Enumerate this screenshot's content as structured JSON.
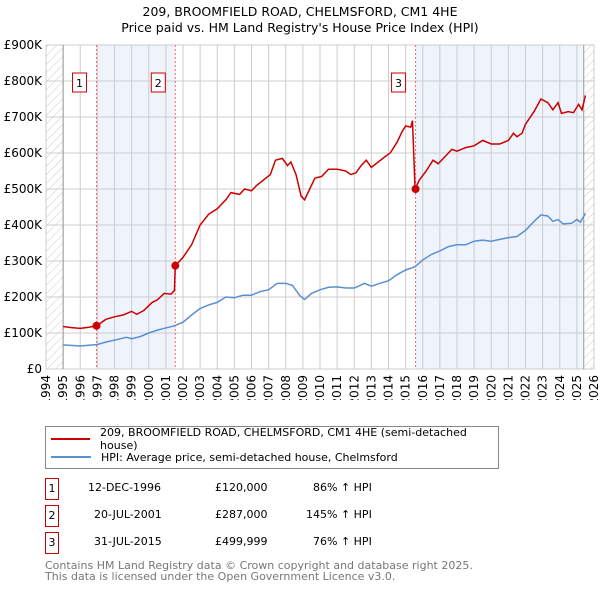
{
  "title": "209, BROOMFIELD ROAD, CHELMSFORD, CM1 4HE",
  "subtitle": "Price paid vs. HM Land Registry's House Price Index (HPI)",
  "chart_data": {
    "type": "line",
    "xlim": [
      1994,
      2026
    ],
    "ylim": [
      0,
      900000
    ],
    "x_ticks": [
      "1994",
      "1995",
      "1996",
      "1997",
      "1998",
      "1999",
      "2000",
      "2001",
      "2002",
      "2003",
      "2004",
      "2005",
      "2006",
      "2007",
      "2008",
      "2009",
      "2010",
      "2011",
      "2012",
      "2013",
      "2014",
      "2015",
      "2016",
      "2017",
      "2018",
      "2019",
      "2020",
      "2021",
      "2022",
      "2023",
      "2024",
      "2025",
      "2026"
    ],
    "y_ticks": [
      {
        "v": 0,
        "label": "£0"
      },
      {
        "v": 100000,
        "label": "£100K"
      },
      {
        "v": 200000,
        "label": "£200K"
      },
      {
        "v": 300000,
        "label": "£300K"
      },
      {
        "v": 400000,
        "label": "£400K"
      },
      {
        "v": 500000,
        "label": "£500K"
      },
      {
        "v": 600000,
        "label": "£600K"
      },
      {
        "v": 700000,
        "label": "£700K"
      },
      {
        "v": 800000,
        "label": "£800K"
      },
      {
        "v": 900000,
        "label": "£900K"
      }
    ],
    "series": [
      {
        "name": "209, BROOMFIELD ROAD, CHELMSFORD, CM1 4HE (semi-detached house)",
        "color": "#cc0000",
        "points": [
          [
            1995,
            118
          ],
          [
            1995.5,
            115
          ],
          [
            1996,
            113
          ],
          [
            1996.5,
            116
          ],
          [
            1996.95,
            120
          ],
          [
            1997.5,
            138
          ],
          [
            1998,
            145
          ],
          [
            1998.5,
            150
          ],
          [
            1999,
            160
          ],
          [
            1999.3,
            152
          ],
          [
            1999.7,
            162
          ],
          [
            2000.2,
            185
          ],
          [
            2000.5,
            192
          ],
          [
            2000.9,
            210
          ],
          [
            2001.3,
            208
          ],
          [
            2001.5,
            218
          ],
          [
            2001.55,
            287
          ],
          [
            2002,
            310
          ],
          [
            2002.5,
            345
          ],
          [
            2003,
            400
          ],
          [
            2003.5,
            430
          ],
          [
            2004,
            445
          ],
          [
            2004.5,
            470
          ],
          [
            2004.8,
            490
          ],
          [
            2005.3,
            485
          ],
          [
            2005.6,
            500
          ],
          [
            2006,
            495
          ],
          [
            2006.3,
            510
          ],
          [
            2006.7,
            525
          ],
          [
            2007.1,
            540
          ],
          [
            2007.4,
            580
          ],
          [
            2007.8,
            585
          ],
          [
            2008.1,
            565
          ],
          [
            2008.3,
            575
          ],
          [
            2008.6,
            540
          ],
          [
            2008.9,
            480
          ],
          [
            2009.1,
            470
          ],
          [
            2009.4,
            500
          ],
          [
            2009.7,
            530
          ],
          [
            2010.1,
            535
          ],
          [
            2010.5,
            555
          ],
          [
            2011,
            555
          ],
          [
            2011.5,
            550
          ],
          [
            2011.8,
            540
          ],
          [
            2012.1,
            545
          ],
          [
            2012.4,
            565
          ],
          [
            2012.7,
            580
          ],
          [
            2013,
            560
          ],
          [
            2013.4,
            575
          ],
          [
            2013.8,
            590
          ],
          [
            2014.1,
            600
          ],
          [
            2014.5,
            630
          ],
          [
            2014.8,
            660
          ],
          [
            2015,
            675
          ],
          [
            2015.3,
            672
          ],
          [
            2015.4,
            690
          ],
          [
            2015.55,
            500
          ],
          [
            2015.8,
            525
          ],
          [
            2016.2,
            550
          ],
          [
            2016.6,
            580
          ],
          [
            2016.9,
            570
          ],
          [
            2017.3,
            590
          ],
          [
            2017.7,
            610
          ],
          [
            2018,
            605
          ],
          [
            2018.5,
            615
          ],
          [
            2019,
            620
          ],
          [
            2019.5,
            635
          ],
          [
            2020,
            625
          ],
          [
            2020.5,
            625
          ],
          [
            2021,
            635
          ],
          [
            2021.3,
            655
          ],
          [
            2021.5,
            645
          ],
          [
            2021.8,
            655
          ],
          [
            2022,
            680
          ],
          [
            2022.5,
            715
          ],
          [
            2022.9,
            750
          ],
          [
            2023.3,
            740
          ],
          [
            2023.6,
            720
          ],
          [
            2023.9,
            740
          ],
          [
            2024.1,
            710
          ],
          [
            2024.5,
            715
          ],
          [
            2024.8,
            712
          ],
          [
            2025.1,
            735
          ],
          [
            2025.3,
            720
          ],
          [
            2025.5,
            760
          ]
        ]
      },
      {
        "name": "HPI: Average price, semi-detached house, Chelmsford",
        "color": "#5b8fd4",
        "points": [
          [
            1995,
            67
          ],
          [
            1996,
            64
          ],
          [
            1997,
            68
          ],
          [
            1997.5,
            75
          ],
          [
            1998,
            80
          ],
          [
            1998.7,
            88
          ],
          [
            1999,
            84
          ],
          [
            1999.5,
            90
          ],
          [
            2000,
            100
          ],
          [
            2000.5,
            108
          ],
          [
            2001,
            114
          ],
          [
            2001.5,
            120
          ],
          [
            2002,
            130
          ],
          [
            2002.5,
            150
          ],
          [
            2003,
            168
          ],
          [
            2003.5,
            178
          ],
          [
            2004,
            185
          ],
          [
            2004.5,
            200
          ],
          [
            2005,
            198
          ],
          [
            2005.5,
            205
          ],
          [
            2006,
            205
          ],
          [
            2006.5,
            215
          ],
          [
            2007,
            220
          ],
          [
            2007.5,
            238
          ],
          [
            2008,
            238
          ],
          [
            2008.4,
            232
          ],
          [
            2008.8,
            205
          ],
          [
            2009.1,
            193
          ],
          [
            2009.5,
            210
          ],
          [
            2010,
            220
          ],
          [
            2010.5,
            227
          ],
          [
            2011,
            228
          ],
          [
            2011.5,
            225
          ],
          [
            2012,
            225
          ],
          [
            2012.6,
            238
          ],
          [
            2013,
            230
          ],
          [
            2013.5,
            238
          ],
          [
            2014,
            245
          ],
          [
            2014.5,
            262
          ],
          [
            2015,
            275
          ],
          [
            2015.55,
            284
          ],
          [
            2016,
            303
          ],
          [
            2016.5,
            318
          ],
          [
            2017,
            328
          ],
          [
            2017.5,
            340
          ],
          [
            2018,
            345
          ],
          [
            2018.5,
            345
          ],
          [
            2019,
            355
          ],
          [
            2019.5,
            358
          ],
          [
            2020,
            355
          ],
          [
            2020.5,
            360
          ],
          [
            2021,
            365
          ],
          [
            2021.5,
            368
          ],
          [
            2022,
            385
          ],
          [
            2022.5,
            410
          ],
          [
            2022.9,
            428
          ],
          [
            2023.3,
            425
          ],
          [
            2023.6,
            410
          ],
          [
            2023.9,
            415
          ],
          [
            2024.2,
            403
          ],
          [
            2024.7,
            405
          ],
          [
            2025,
            415
          ],
          [
            2025.2,
            408
          ],
          [
            2025.5,
            432
          ]
        ]
      }
    ],
    "y_unit": "thousands GBP",
    "sales": [
      {
        "label": "1",
        "x": 1996.95,
        "y": 120
      },
      {
        "label": "2",
        "x": 2001.55,
        "y": 287
      },
      {
        "label": "3",
        "x": 2015.58,
        "y": 500
      }
    ]
  },
  "legend": [
    "209, BROOMFIELD ROAD, CHELMSFORD, CM1 4HE (semi-detached house)",
    "HPI: Average price, semi-detached house, Chelmsford"
  ],
  "transactions": [
    {
      "num": "1",
      "date": "12-DEC-1996",
      "price": "£120,000",
      "hpi": "86% ↑ HPI"
    },
    {
      "num": "2",
      "date": "20-JUL-2001",
      "price": "£287,000",
      "hpi": "145% ↑ HPI"
    },
    {
      "num": "3",
      "date": "31-JUL-2015",
      "price": "£499,999",
      "hpi": "76% ↑ HPI"
    }
  ],
  "footer": [
    "Contains HM Land Registry data © Crown copyright and database right 2025.",
    "This data is licensed under the Open Government Licence v3.0."
  ]
}
